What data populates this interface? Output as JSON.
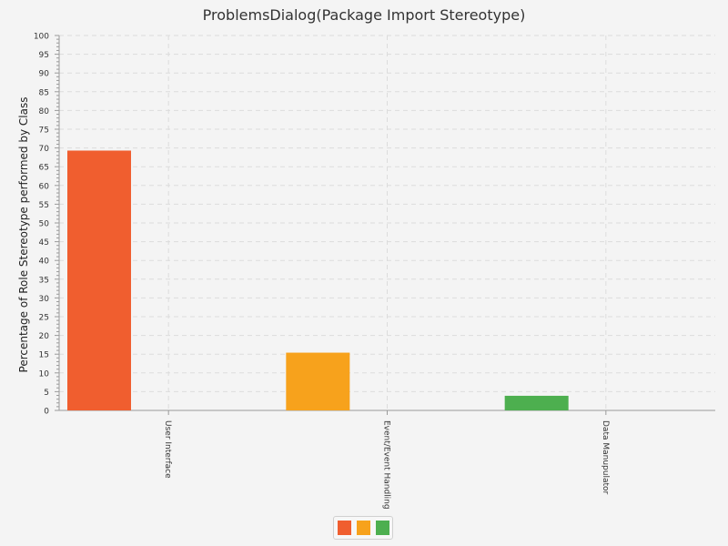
{
  "chart_data": {
    "type": "bar",
    "title": "ProblemsDialog(Package Import Stereotype)",
    "xlabel": "",
    "ylabel": "Percentage of Role Stereotype performed by Class",
    "categories": [
      "User Interface",
      "Event/Event Handling",
      "Data Manupulator"
    ],
    "values": [
      69.3,
      15.4,
      3.9
    ],
    "colors": [
      "#f05e2f",
      "#f7a21c",
      "#4daf4f"
    ],
    "ylim": [
      0,
      100
    ],
    "yticks": [
      "0",
      "5",
      "10",
      "15",
      "20",
      "25",
      "30",
      "35",
      "40",
      "45",
      "50",
      "55",
      "60",
      "65",
      "70",
      "75",
      "80",
      "85",
      "90",
      "95",
      "100"
    ],
    "grid": true,
    "legend": {
      "position": "bottom",
      "colors": [
        "#f05e2f",
        "#f7a21c",
        "#4daf4f"
      ]
    }
  }
}
